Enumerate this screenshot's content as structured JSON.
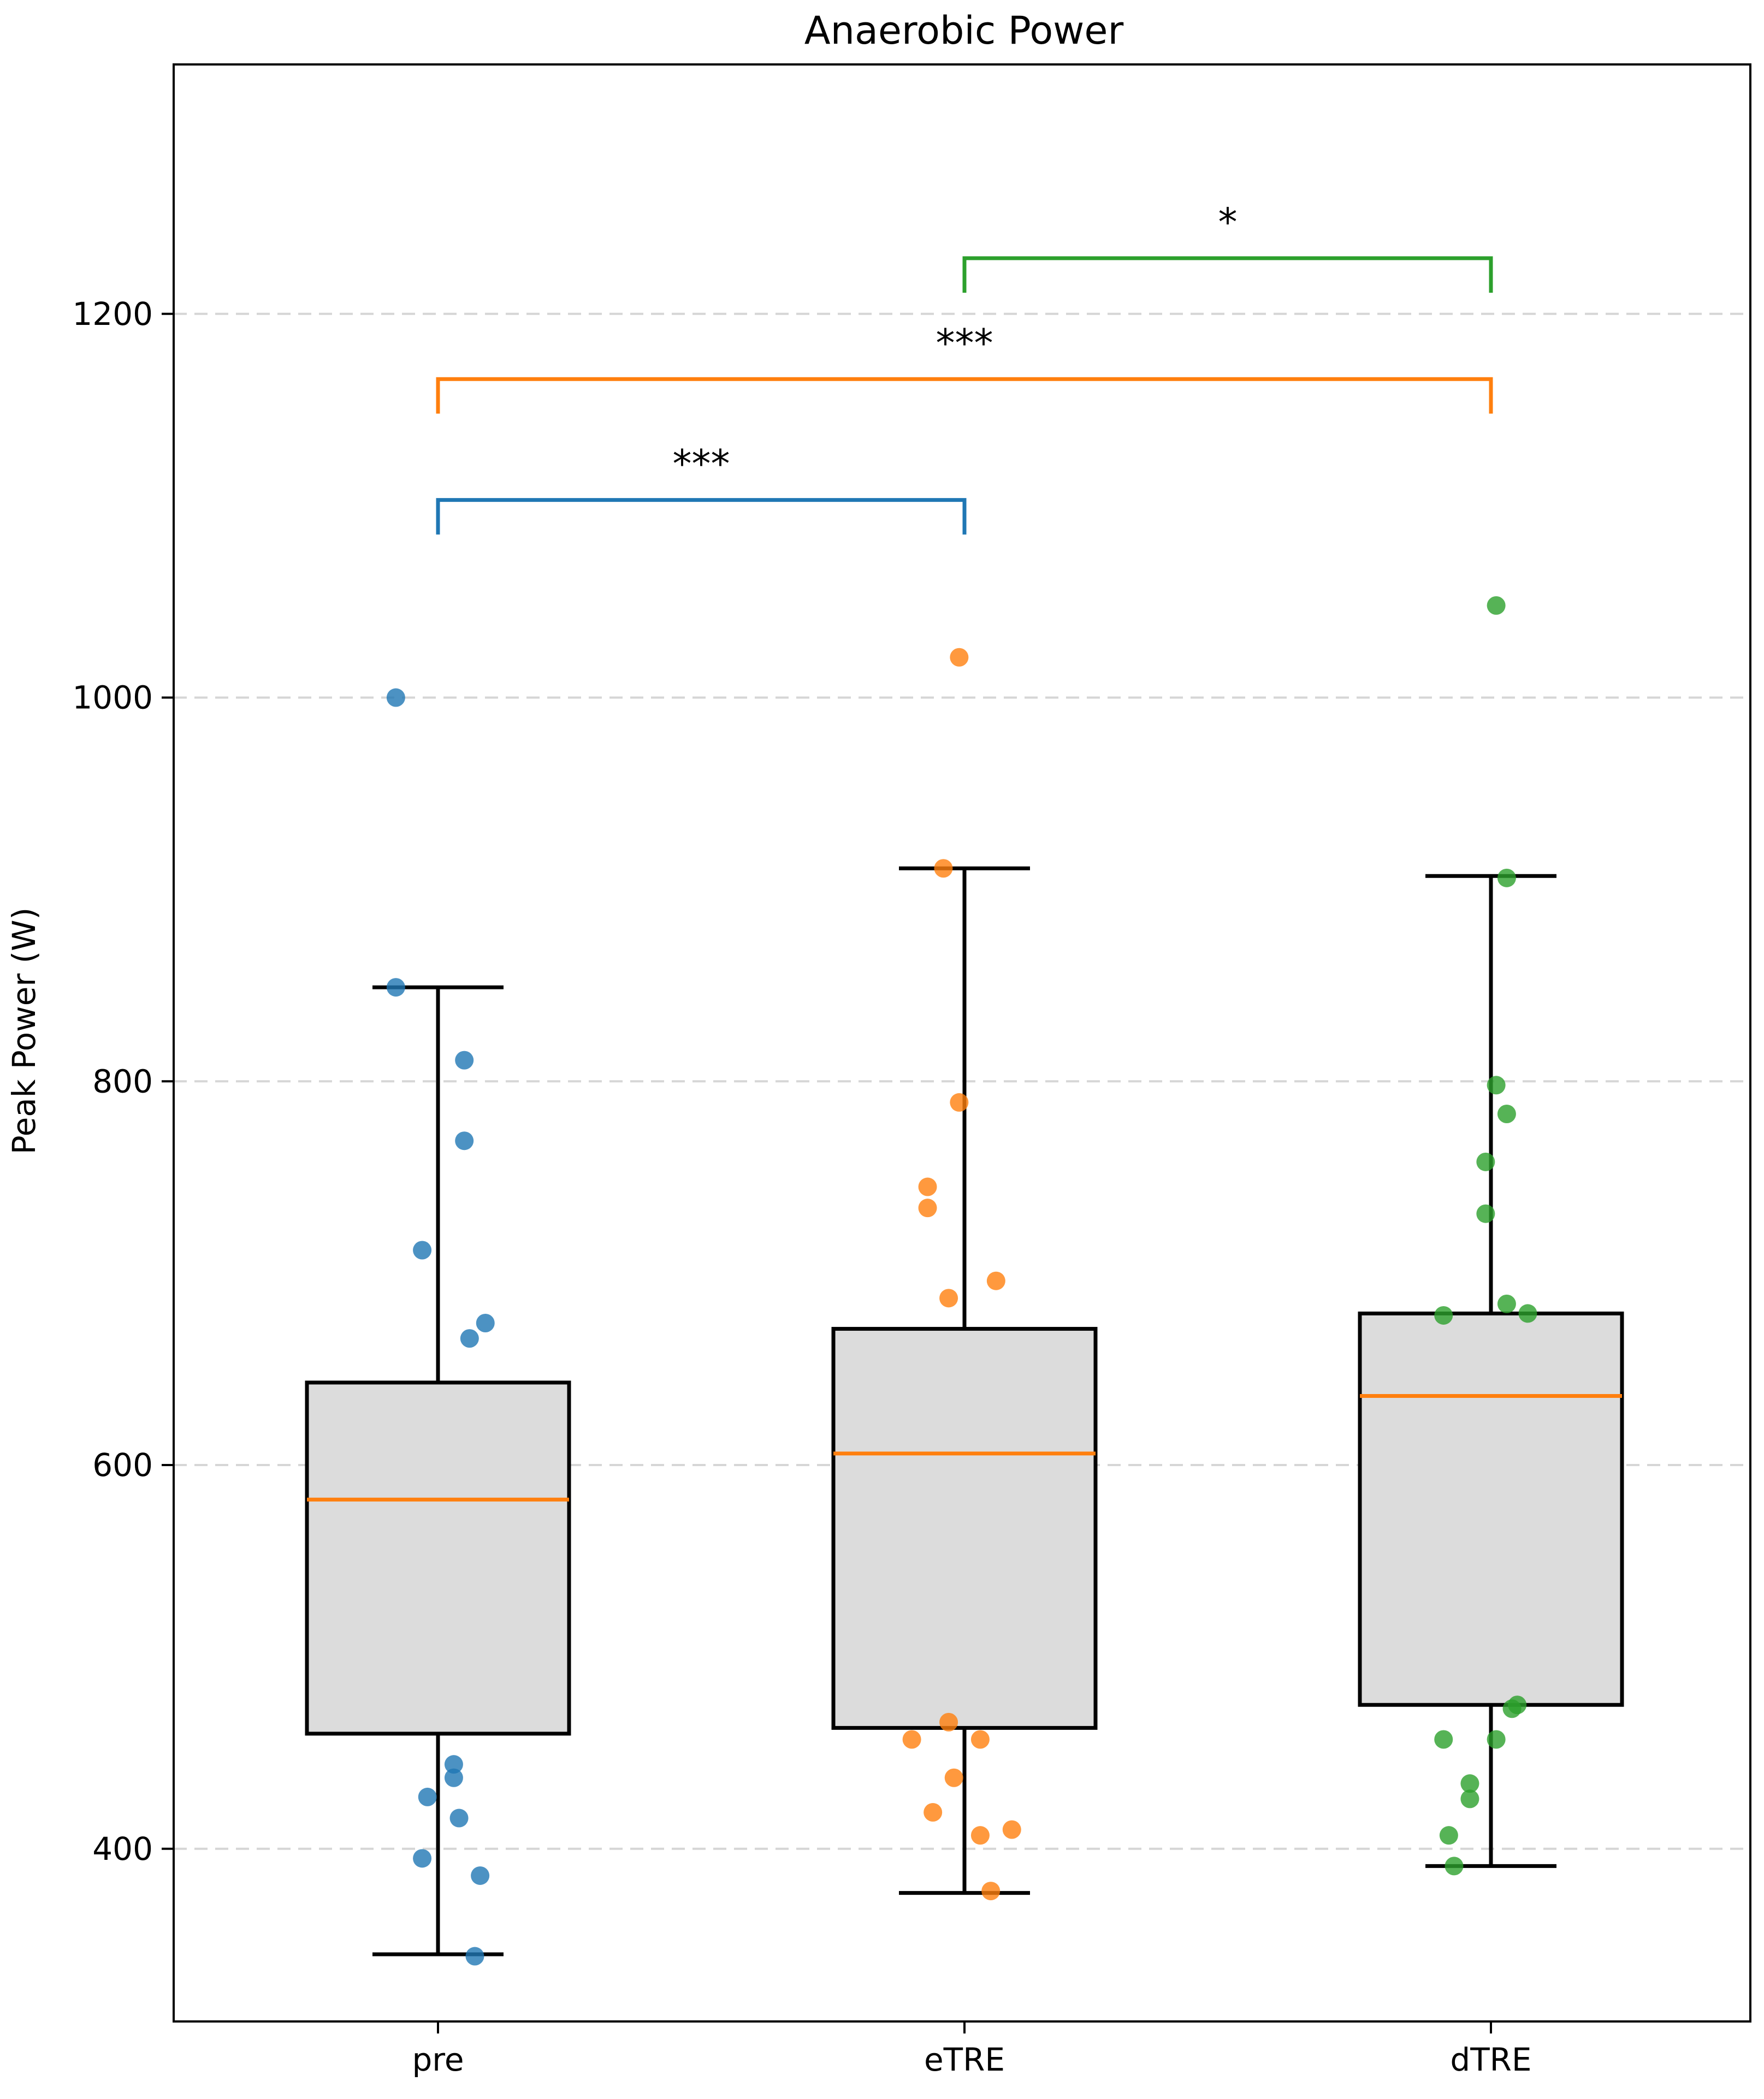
{
  "chart_data": {
    "type": "box",
    "title": "Anaerobic Power",
    "xlabel": "",
    "ylabel": "Peak Power (W)",
    "ylim": [
      310,
      1330
    ],
    "yticks": [
      400,
      600,
      800,
      1000,
      1200
    ],
    "grid": "horizontal dashed",
    "categories": [
      "pre",
      "eTRE",
      "dTRE"
    ],
    "boxes": [
      {
        "name": "pre",
        "whisker_low": 345,
        "q1": 460,
        "median": 582,
        "q3": 643,
        "whisker_high": 849
      },
      {
        "name": "eTRE",
        "whisker_low": 377,
        "q1": 463,
        "median": 606,
        "q3": 671,
        "whisker_high": 911
      },
      {
        "name": "dTRE",
        "whisker_low": 391,
        "q1": 475,
        "median": 636,
        "q3": 679,
        "whisker_high": 907
      }
    ],
    "series": [
      {
        "name": "pre",
        "color": "#1f77b4",
        "points": [
          [
            -0.08,
            1000
          ],
          [
            -0.08,
            849
          ],
          [
            0.05,
            811
          ],
          [
            0.05,
            769
          ],
          [
            -0.03,
            712
          ],
          [
            0.09,
            674
          ],
          [
            0.06,
            666
          ],
          [
            0.03,
            444
          ],
          [
            0.03,
            437
          ],
          [
            -0.02,
            427
          ],
          [
            0.04,
            416
          ],
          [
            -0.03,
            395
          ],
          [
            0.08,
            386
          ],
          [
            0.07,
            344
          ]
        ]
      },
      {
        "name": "eTRE",
        "color": "#ff7f0e",
        "points": [
          [
            -0.01,
            1021
          ],
          [
            -0.04,
            911
          ],
          [
            -0.01,
            789
          ],
          [
            -0.07,
            745
          ],
          [
            -0.07,
            734
          ],
          [
            0.06,
            696
          ],
          [
            -0.03,
            687
          ],
          [
            -0.03,
            466
          ],
          [
            -0.1,
            457
          ],
          [
            0.03,
            457
          ],
          [
            -0.02,
            437
          ],
          [
            -0.06,
            419
          ],
          [
            0.03,
            407
          ],
          [
            0.09,
            410
          ],
          [
            0.05,
            378
          ]
        ]
      },
      {
        "name": "dTRE",
        "color": "#2ca02c",
        "points": [
          [
            0.01,
            1048
          ],
          [
            0.03,
            906
          ],
          [
            0.01,
            798
          ],
          [
            0.03,
            783
          ],
          [
            -0.01,
            758
          ],
          [
            -0.01,
            731
          ],
          [
            0.03,
            684
          ],
          [
            0.07,
            679
          ],
          [
            -0.09,
            678
          ],
          [
            0.05,
            475
          ],
          [
            0.04,
            473
          ],
          [
            -0.09,
            457
          ],
          [
            0.01,
            457
          ],
          [
            -0.04,
            434
          ],
          [
            -0.04,
            426
          ],
          [
            -0.08,
            407
          ],
          [
            -0.07,
            391
          ]
        ]
      }
    ],
    "significance": [
      {
        "from": "pre",
        "to": "eTRE",
        "label": "***",
        "color": "#1f77b4",
        "y": 1103,
        "tick": 18
      },
      {
        "from": "pre",
        "to": "dTRE",
        "label": "***",
        "color": "#ff7f0e",
        "y": 1166,
        "tick": 18
      },
      {
        "from": "eTRE",
        "to": "dTRE",
        "label": "*",
        "color": "#2ca02c",
        "y": 1229,
        "tick": 18
      }
    ]
  }
}
